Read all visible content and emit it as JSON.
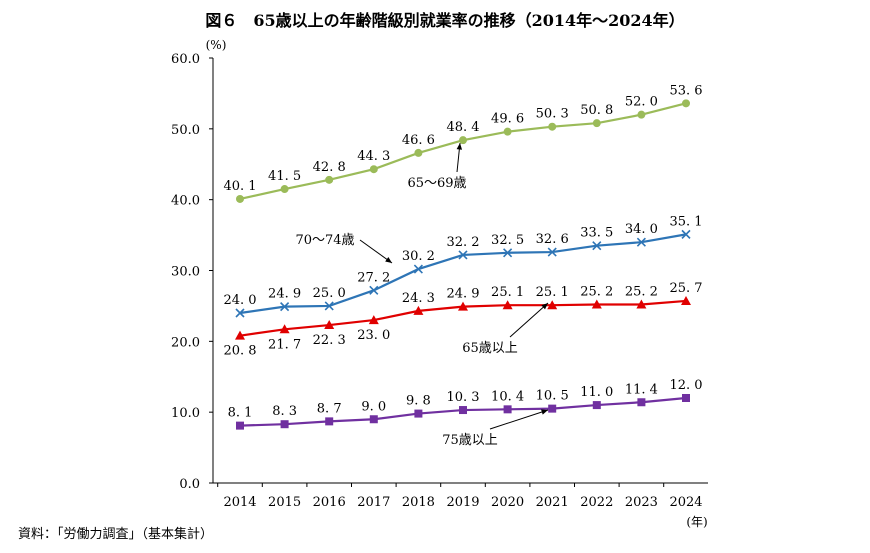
{
  "chart_data": {
    "type": "line",
    "title": "図６　65歳以上の年齢階級別就業率の推移（2014年～2024年）",
    "ylabel": "(%)",
    "xlabel": "(年)",
    "source": "資料：「労働力調査」（基本集計）",
    "ylim": [
      0,
      60
    ],
    "yticks": [
      "0.0",
      "10.0",
      "20.0",
      "30.0",
      "40.0",
      "50.0",
      "60.0"
    ],
    "categories": [
      "2014",
      "2015",
      "2016",
      "2017",
      "2018",
      "2019",
      "2020",
      "2021",
      "2022",
      "2023",
      "2024"
    ],
    "grid": false,
    "series": [
      {
        "name": "65～69歳",
        "color": "#9bbb59",
        "marker": "circle",
        "values": [
          40.1,
          41.5,
          42.8,
          44.3,
          46.6,
          48.4,
          49.6,
          50.3,
          50.8,
          52.0,
          53.6
        ]
      },
      {
        "name": "70～74歳",
        "color": "#2e75b6",
        "marker": "x",
        "values": [
          24.0,
          24.9,
          25.0,
          27.2,
          30.2,
          32.2,
          32.5,
          32.6,
          33.5,
          34.0,
          35.1
        ]
      },
      {
        "name": "65歳以上",
        "color": "#e00000",
        "marker": "triangle",
        "values": [
          20.8,
          21.7,
          22.3,
          23.0,
          24.3,
          24.9,
          25.1,
          25.1,
          25.2,
          25.2,
          25.7
        ]
      },
      {
        "name": "75歳以上",
        "color": "#7030a0",
        "marker": "square",
        "values": [
          8.1,
          8.3,
          8.7,
          9.0,
          9.8,
          10.3,
          10.4,
          10.5,
          11.0,
          11.4,
          12.0
        ]
      }
    ]
  }
}
